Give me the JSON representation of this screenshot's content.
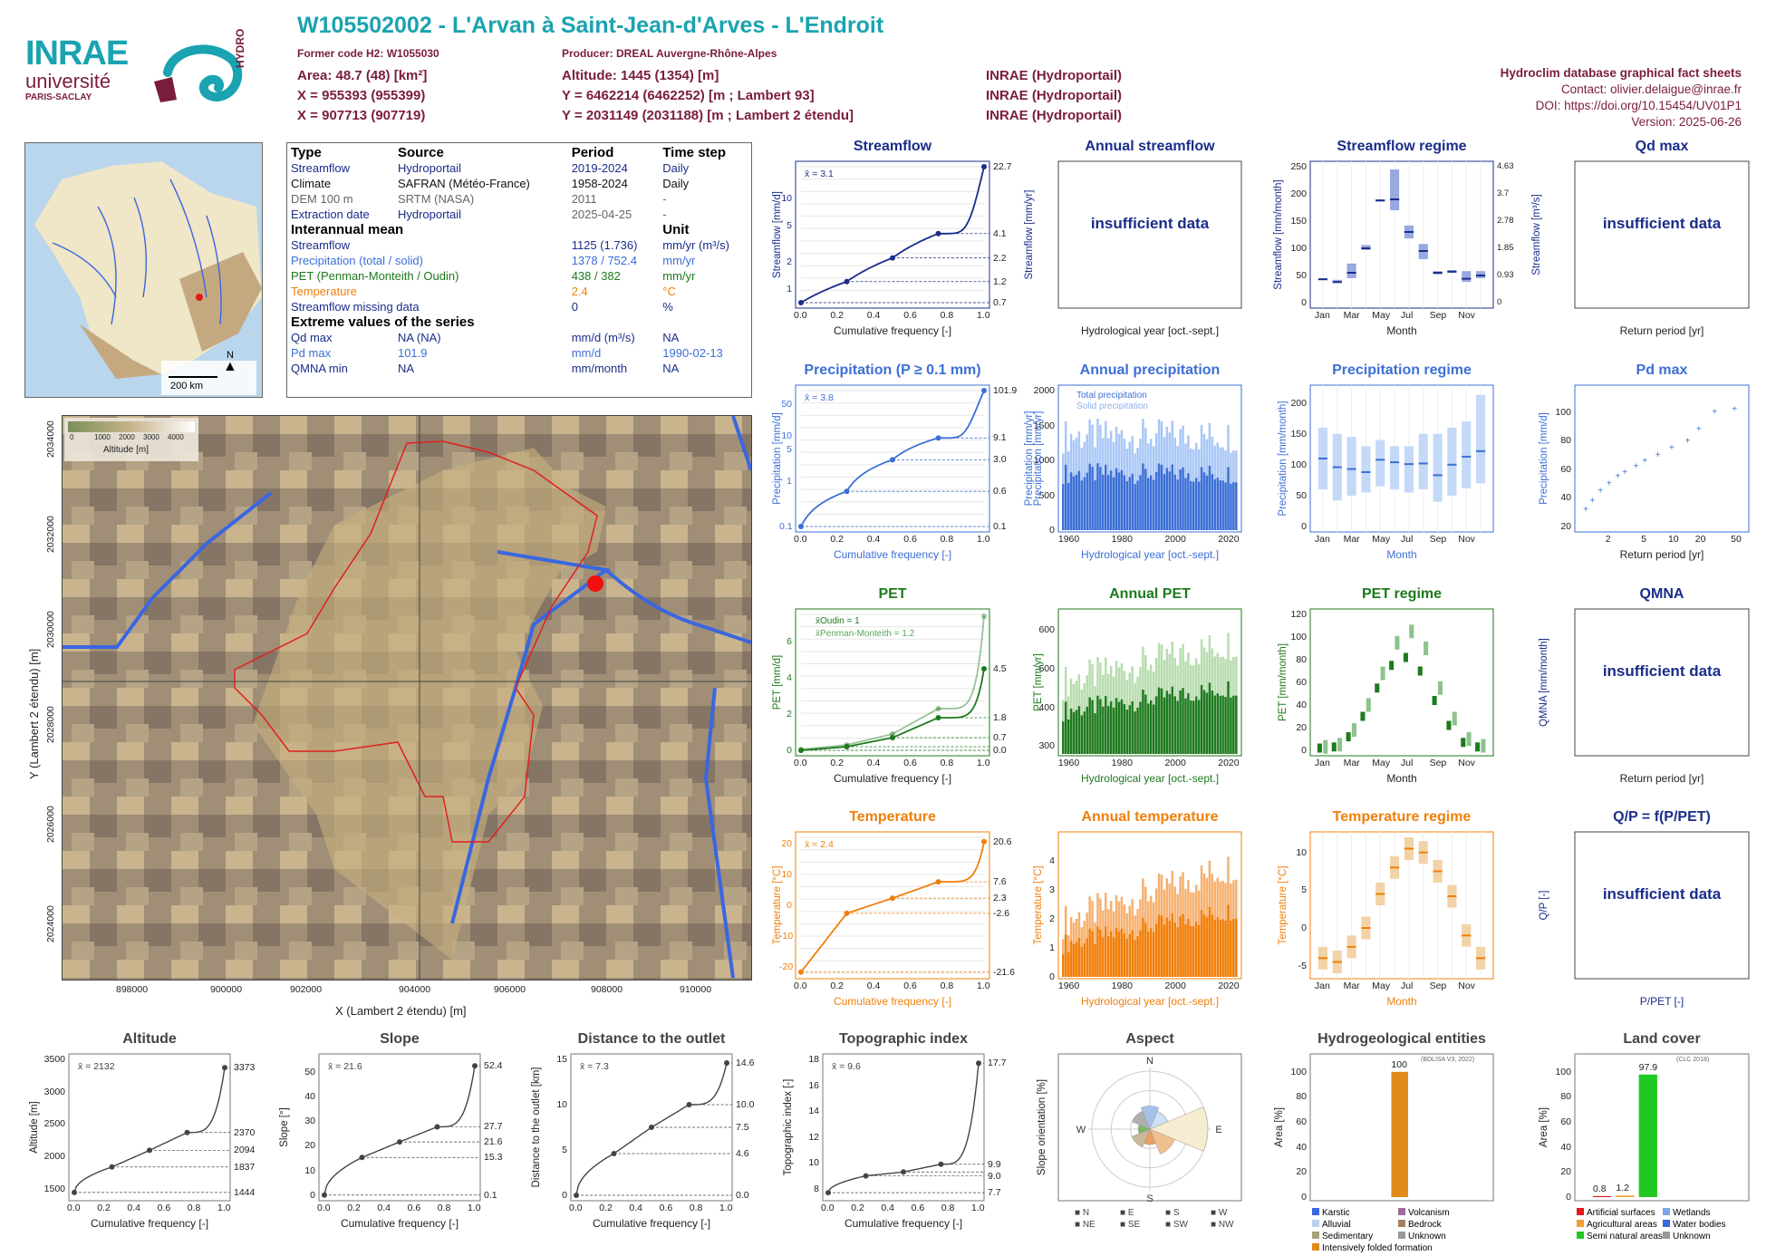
{
  "header": {
    "title": "W105502002 - L'Arvan à Saint-Jean-d'Arves - L'Endroit",
    "former_code": "Former code H2: W1055030",
    "producer": "Producer: DREAL Auvergne-Rhône-Alpes",
    "area": "Area: 48.7 (48) [km²]",
    "x93": "X = 955393 (955399)",
    "x2e": "X = 907713 (907719)",
    "altitude": "Altitude: 1445 (1354) [m]",
    "y93": "Y = 6462214 (6462252) [m ; Lambert 93]",
    "y2e": "Y = 2031149 (2031188) [m ; Lambert 2 étendu]",
    "src1": "INRAE (Hydroportail)",
    "src2": "INRAE (Hydroportail)",
    "src3": "INRAE (Hydroportail)",
    "db": "Hydroclim database graphical fact sheets",
    "contact": "Contact: olivier.delaigue@inrae.fr",
    "doi": "DOI: https://doi.org/10.15454/UV01P1",
    "version": "Version: 2025-06-26"
  },
  "logos": {
    "inrae": "INRAE",
    "universite": "université",
    "paris": "PARIS-SACLAY",
    "hydro": "HYDRO"
  },
  "colors": {
    "header_teal": "#1aa3b0",
    "dark_red": "#7a1d3b",
    "streamflow": "#1a2d8a",
    "precip": "#3c6fd6",
    "pet": "#1e7a1e",
    "temp": "#f07f0a",
    "basin_outline": "#e02020",
    "river": "#3a66e0",
    "grey": "#555555",
    "land_natural": "#22c822",
    "hydro_folded": "#e08a1a"
  },
  "overview_map": {
    "scale": "200 km",
    "north": "N"
  },
  "info": {
    "h_type": "Type",
    "h_source": "Source",
    "h_period": "Period",
    "h_step": "Time step",
    "rows": [
      {
        "type": "Streamflow",
        "source": "Hydroportail",
        "period": "2019-2024",
        "step": "Daily"
      },
      {
        "type": "Climate",
        "source": "SAFRAN (Météo-France)",
        "period": "1958-2024",
        "step": "Daily"
      },
      {
        "type": "DEM 100 m",
        "source": "SRTM (NASA)",
        "period": "2011",
        "step": "-"
      },
      {
        "type": "Extraction date",
        "source": "Hydroportail",
        "period": "2025-04-25",
        "step": "-"
      }
    ],
    "h_mean": "Interannual mean",
    "h_unit": "Unit",
    "mean_rows": [
      {
        "label": "Streamflow",
        "value": "1125 (1.736)",
        "unit": "mm/yr (m³/s)"
      },
      {
        "label": "Precipitation (total / solid)",
        "value": "1378 / 752.4",
        "unit": "mm/yr"
      },
      {
        "label": "PET (Penman-Monteith / Oudin)",
        "value": "438 / 382",
        "unit": "mm/yr"
      },
      {
        "label": "Temperature",
        "value": "2.4",
        "unit": "°C"
      },
      {
        "label": "Streamflow missing data",
        "value": "0",
        "unit": "%"
      }
    ],
    "h_extreme": "Extreme values of the series",
    "ext_rows": [
      {
        "label": "Qd max",
        "value": "NA (NA)",
        "unit": "mm/d (m³/s)",
        "date": "NA"
      },
      {
        "label": "Pd max",
        "value": "101.9",
        "unit": "mm/d",
        "date": "1990-02-13"
      },
      {
        "label": "QMNA min",
        "value": "NA",
        "unit": "mm/month",
        "date": "NA"
      }
    ]
  },
  "basin_map": {
    "legend_title": "Altitude [m]",
    "legend_ticks": [
      "0",
      "1000",
      "2000",
      "3000",
      "4000"
    ],
    "xlabel": "X (Lambert 2 étendu) [m]",
    "ylabel": "Y (Lambert 2 étendu) [m]",
    "xticks": [
      "898000",
      "900000",
      "902000",
      "904000",
      "906000",
      "908000",
      "910000"
    ],
    "yticks": [
      "2024000",
      "2026000",
      "2028000",
      "2030000",
      "2032000",
      "2034000"
    ]
  },
  "panels": {
    "streamflow": {
      "title": "Streamflow",
      "xlabel": "Cumulative frequency [-]",
      "ylabel": "Streamflow [mm/d]",
      "ylabel2": "Streamflow [mm/yr]",
      "mean": "x̄ = 3.1"
    },
    "annual_streamflow": {
      "title": "Annual streamflow",
      "xlabel": "Hydrological year [oct.-sept.]",
      "msg": "insufficient data"
    },
    "streamflow_regime": {
      "title": "Streamflow regime",
      "xlabel": "Month",
      "ylabel": "Streamflow [mm/month]",
      "ylabel2": "Streamflow [m³/s]"
    },
    "qd_max": {
      "title": "Qd max",
      "xlabel": "Return period [yr]",
      "msg": "insufficient data"
    },
    "precipitation": {
      "title": "Precipitation (P ≥ 0.1 mm)",
      "xlabel": "Cumulative frequency [-]",
      "ylabel": "Precipitation [mm/d]",
      "ylabel2": "Precipitation [mm/yr]",
      "mean": "x̄ = 3.8"
    },
    "annual_precipitation": {
      "title": "Annual precipitation",
      "xlabel": "Hydrological year [oct.-sept.]",
      "ylabel": "Precipitation [mm/yr]",
      "legend_total": "Total precipitation",
      "legend_solid": "Solid precipitation"
    },
    "precip_regime": {
      "title": "Precipitation regime",
      "xlabel": "Month",
      "ylabel": "Precipitation [mm/month]"
    },
    "pd_max": {
      "title": "Pd max",
      "xlabel": "Return period [yr]",
      "ylabel": "Precipitation [mm/d]"
    },
    "pet": {
      "title": "PET",
      "xlabel": "Cumulative frequency [-]",
      "ylabel": "PET [mm/d]",
      "legend1": "x̄Oudin = 1",
      "legend2": "x̄Penman-Monteith = 1.2"
    },
    "annual_pet": {
      "title": "Annual PET",
      "xlabel": "Hydrological year [oct.-sept.]",
      "ylabel": "PET [mm/yr]"
    },
    "pet_regime": {
      "title": "PET regime",
      "xlabel": "Month",
      "ylabel": "PET [mm/month]"
    },
    "qmna": {
      "title": "QMNA",
      "xlabel": "Return period [yr]",
      "ylabel": "QMNA [mm/month]",
      "msg": "insufficient data"
    },
    "temperature": {
      "title": "Temperature",
      "xlabel": "Cumulative frequency [-]",
      "ylabel": "Temperature [°C]",
      "mean": "x̄ = 2.4"
    },
    "annual_temperature": {
      "title": "Annual temperature",
      "xlabel": "Hydrological year [oct.-sept.]",
      "ylabel": "Temperature [°C]"
    },
    "temp_regime": {
      "title": "Temperature regime",
      "xlabel": "Month",
      "ylabel": "Temperature [°C]"
    },
    "qp": {
      "title": "Q/P = f(P/PET)",
      "xlabel": "P/PET [-]",
      "ylabel": "Q/P [-]",
      "msg": "insufficient data"
    },
    "altitude": {
      "title": "Altitude",
      "xlabel": "Cumulative frequency [-]",
      "ylabel": "Altitude [m]",
      "mean": "x̄ = 2132"
    },
    "slope": {
      "title": "Slope",
      "xlabel": "Cumulative frequency [-]",
      "ylabel": "Slope [°]",
      "mean": "x̄ = 21.6"
    },
    "distance": {
      "title": "Distance to the outlet",
      "xlabel": "Cumulative frequency [-]",
      "ylabel": "Distance to the outlet [km]",
      "mean": "x̄ = 7.3"
    },
    "topo": {
      "title": "Topographic index",
      "xlabel": "Cumulative frequency [-]",
      "ylabel": "Topographic index [-]",
      "mean": "x̄ = 9.6"
    },
    "aspect": {
      "title": "Aspect",
      "ylabel": "Slope orientation [%]"
    },
    "hydrogeo": {
      "title": "Hydrogeological entities",
      "ylabel": "Area [%]",
      "note": "(BDLISA V3, 2022)"
    },
    "landcover": {
      "title": "Land cover",
      "ylabel": "Area [%]",
      "note": "(CLC 2018)"
    }
  },
  "chart_data": [
    {
      "type": "line",
      "title": "Streamflow",
      "x": [
        0,
        0.25,
        0.5,
        0.75,
        1
      ],
      "y": [
        0.7,
        1.2,
        2.2,
        4.1,
        22.7
      ],
      "yscale": "log",
      "ylim": [
        0.7,
        22.7
      ],
      "yticks": [
        1,
        2,
        5,
        10
      ],
      "yticks_right": [
        22.7,
        4.1,
        2.2,
        1.2,
        0.7
      ],
      "mean": 3.1
    },
    {
      "type": "bar",
      "title": "Streamflow regime",
      "categories": [
        "Jan",
        "Feb",
        "Mar",
        "Apr",
        "May",
        "Jun",
        "Jul",
        "Aug",
        "Sep",
        "Oct",
        "Nov",
        "Dec"
      ],
      "median": [
        43,
        38,
        55,
        100,
        188,
        190,
        130,
        95,
        55,
        57,
        44,
        50
      ],
      "q_low": [
        42,
        36,
        45,
        97,
        186,
        170,
        118,
        80,
        52,
        55,
        38,
        45
      ],
      "q_high": [
        45,
        42,
        72,
        106,
        190,
        245,
        142,
        108,
        58,
        60,
        58,
        58
      ],
      "ylim": [
        0,
        250
      ],
      "xticks": [
        "Jan",
        "Mar",
        "May",
        "Jul",
        "Sep",
        "Nov"
      ],
      "yticks": [
        0,
        50,
        100,
        150,
        200,
        250
      ],
      "yticks_right": [
        "0",
        "0.93",
        "1.85",
        "2.78",
        "3.7",
        "4.63"
      ]
    },
    {
      "type": "line",
      "title": "Precipitation (P ≥ 0.1 mm)",
      "x": [
        0,
        0.25,
        0.5,
        0.75,
        1
      ],
      "y": [
        0.1,
        0.6,
        3.0,
        9.1,
        101.9
      ],
      "yscale": "log",
      "ylim": [
        0.1,
        101.9
      ],
      "yticks": [
        0.1,
        1,
        5,
        10,
        50
      ],
      "yticks_right": [
        101.9,
        9.1,
        3.0,
        0.6,
        0.1
      ],
      "mean": 3.8
    },
    {
      "type": "bar",
      "title": "Annual precipitation",
      "x": [
        "1960",
        "1980",
        "2000",
        "2020"
      ],
      "xlim": [
        1958,
        2024
      ],
      "ylim": [
        0,
        2000
      ],
      "yticks": [
        0,
        500,
        1000,
        1500,
        2000
      ],
      "series": [
        {
          "name": "Total precipitation",
          "mean": 1378
        },
        {
          "name": "Solid precipitation",
          "mean": 752.4
        }
      ]
    },
    {
      "type": "bar",
      "title": "Precipitation regime",
      "categories": [
        "Jan",
        "Feb",
        "Mar",
        "Apr",
        "May",
        "Jun",
        "Jul",
        "Aug",
        "Sep",
        "Oct",
        "Nov",
        "Dec"
      ],
      "median": [
        110,
        96,
        93,
        88,
        108,
        104,
        101,
        102,
        83,
        100,
        113,
        122
      ],
      "q_low": [
        60,
        42,
        50,
        55,
        65,
        60,
        55,
        60,
        40,
        50,
        62,
        70
      ],
      "q_high": [
        160,
        150,
        145,
        130,
        140,
        130,
        130,
        150,
        150,
        160,
        170,
        213
      ],
      "ylim": [
        0,
        220
      ],
      "yticks": [
        0,
        50,
        100,
        150,
        200
      ]
    },
    {
      "type": "scatter",
      "title": "Pd max",
      "x": [
        1.1,
        1.3,
        1.6,
        2,
        2.5,
        3,
        4,
        5,
        7,
        10,
        15,
        20,
        30,
        50
      ],
      "y": [
        32,
        38,
        45,
        50,
        55,
        58,
        62,
        66,
        70,
        75,
        80,
        88,
        100,
        102
      ],
      "xscale": "log",
      "xticks": [
        "2",
        "5",
        "10",
        "20",
        "50"
      ],
      "ylim": [
        20,
        115
      ],
      "yticks": [
        20,
        40,
        60,
        80,
        100
      ]
    },
    {
      "type": "line",
      "title": "PET",
      "x": [
        0,
        0.25,
        0.5,
        0.75,
        1
      ],
      "series": [
        {
          "name": "Oudin",
          "y": [
            0.0,
            0.2,
            0.7,
            1.8,
            4.5
          ]
        },
        {
          "name": "Penman-Monteith",
          "y": [
            0.05,
            0.3,
            0.9,
            2.3,
            7.4
          ]
        }
      ],
      "ylim": [
        0,
        7.5
      ],
      "yticks": [
        0,
        2,
        4,
        6
      ],
      "yticks_right": [
        4.5,
        1.8,
        0.7,
        0.0
      ]
    },
    {
      "type": "bar",
      "title": "Annual PET",
      "x": [
        "1960",
        "1980",
        "2000",
        "2020"
      ],
      "ylim": [
        280,
        640
      ],
      "yticks": [
        300,
        400,
        500,
        600
      ]
    },
    {
      "type": "bar",
      "title": "PET regime",
      "categories": [
        "Jan",
        "Feb",
        "Mar",
        "Apr",
        "May",
        "Jun",
        "Jul",
        "Aug",
        "Sep",
        "Oct",
        "Nov",
        "Dec"
      ],
      "oudin": [
        2,
        3,
        12,
        30,
        55,
        75,
        82,
        70,
        44,
        22,
        7,
        3
      ],
      "penman": [
        3,
        5,
        18,
        40,
        68,
        95,
        105,
        90,
        55,
        28,
        10,
        4
      ],
      "ylim": [
        0,
        120
      ],
      "yticks": [
        0,
        20,
        40,
        60,
        80,
        100,
        120
      ]
    },
    {
      "type": "line",
      "title": "Temperature",
      "x": [
        0,
        0.25,
        0.5,
        0.75,
        1
      ],
      "y": [
        -21.6,
        -2.6,
        2.3,
        7.6,
        20.6
      ],
      "ylim": [
        -22,
        22
      ],
      "yticks": [
        -20,
        -10,
        0,
        10,
        20
      ],
      "yticks_right": [
        20.6,
        7.6,
        2.3,
        -2.6,
        -21.6
      ],
      "mean": 2.4
    },
    {
      "type": "bar",
      "title": "Annual temperature",
      "x": [
        "1960",
        "1980",
        "2000",
        "2020"
      ],
      "ylim": [
        0,
        4.8
      ],
      "yticks": [
        0,
        1,
        2,
        3,
        4
      ]
    },
    {
      "type": "bar",
      "title": "Temperature regime",
      "categories": [
        "Jan",
        "Feb",
        "Mar",
        "Apr",
        "May",
        "Jun",
        "Jul",
        "Aug",
        "Sep",
        "Oct",
        "Nov",
        "Dec"
      ],
      "median": [
        -4,
        -4.5,
        -2.5,
        0,
        4.5,
        8,
        10.5,
        10,
        7.5,
        4.2,
        -1,
        -4
      ],
      "ylim": [
        -6,
        12
      ],
      "yticks": [
        -5,
        0,
        5,
        10
      ]
    },
    {
      "type": "line",
      "title": "Altitude",
      "x": [
        0,
        0.25,
        0.5,
        0.75,
        1
      ],
      "y": [
        1444,
        1837,
        2094,
        2370,
        3373
      ],
      "ylim": [
        1400,
        3500
      ],
      "yticks": [
        1500,
        2000,
        2500,
        3000,
        3500
      ],
      "yticks_right": [
        3373,
        2370,
        2094,
        1837,
        1444
      ],
      "mean": 2132
    },
    {
      "type": "line",
      "title": "Slope",
      "x": [
        0,
        0.25,
        0.5,
        0.75,
        1
      ],
      "y": [
        0.1,
        15.3,
        21.6,
        27.7,
        52.4
      ],
      "ylim": [
        0,
        55
      ],
      "yticks": [
        0,
        10,
        20,
        30,
        40,
        50
      ],
      "yticks_right": [
        52.4,
        27.7,
        21.6,
        15.3,
        0.1
      ],
      "mean": 21.6
    },
    {
      "type": "line",
      "title": "Distance to the outlet",
      "x": [
        0,
        0.25,
        0.5,
        0.75,
        1
      ],
      "y": [
        0,
        4.6,
        7.5,
        10.0,
        14.6
      ],
      "ylim": [
        0,
        15
      ],
      "yticks": [
        0,
        5,
        10,
        15
      ],
      "yticks_right": [
        14.6,
        10.0,
        7.5,
        4.6,
        0.0
      ],
      "mean": 7.3
    },
    {
      "type": "line",
      "title": "Topographic index",
      "x": [
        0,
        0.25,
        0.5,
        0.75,
        1
      ],
      "y": [
        7.7,
        9.0,
        9.3,
        9.9,
        17.7
      ],
      "ylim": [
        7.5,
        18
      ],
      "yticks": [
        8,
        10,
        12,
        14,
        16,
        18
      ],
      "yticks_right": [
        17.7,
        9.9,
        9.0,
        7.7
      ],
      "mean": 9.6
    },
    {
      "type": "pie",
      "title": "Aspect",
      "categories": [
        "N",
        "NE",
        "E",
        "SE",
        "S",
        "SW",
        "W",
        "NW"
      ],
      "values": [
        12,
        10,
        30,
        14,
        8,
        10,
        6,
        10
      ],
      "rings": [
        10,
        20,
        30
      ]
    },
    {
      "type": "bar",
      "title": "Hydrogeological entities",
      "categories": [
        "Karstic",
        "Alluvial",
        "Sedimentary",
        "Intensively folded formation",
        "Volcanism",
        "Bedrock",
        "Unknown"
      ],
      "values": [
        0,
        0,
        0,
        100,
        0,
        0,
        0
      ],
      "ylim": [
        0,
        110
      ],
      "yticks": [
        0,
        20,
        40,
        60,
        80,
        100
      ]
    },
    {
      "type": "bar",
      "title": "Land cover",
      "categories": [
        "Artificial surfaces",
        "Agricultural areas",
        "Semi natural areas",
        "Wetlands",
        "Water bodies",
        "Unknown"
      ],
      "values": [
        0.8,
        1.2,
        97.9,
        0,
        0,
        0
      ],
      "ylim": [
        0,
        110
      ],
      "yticks": [
        0,
        20,
        40,
        60,
        80,
        100
      ]
    }
  ]
}
